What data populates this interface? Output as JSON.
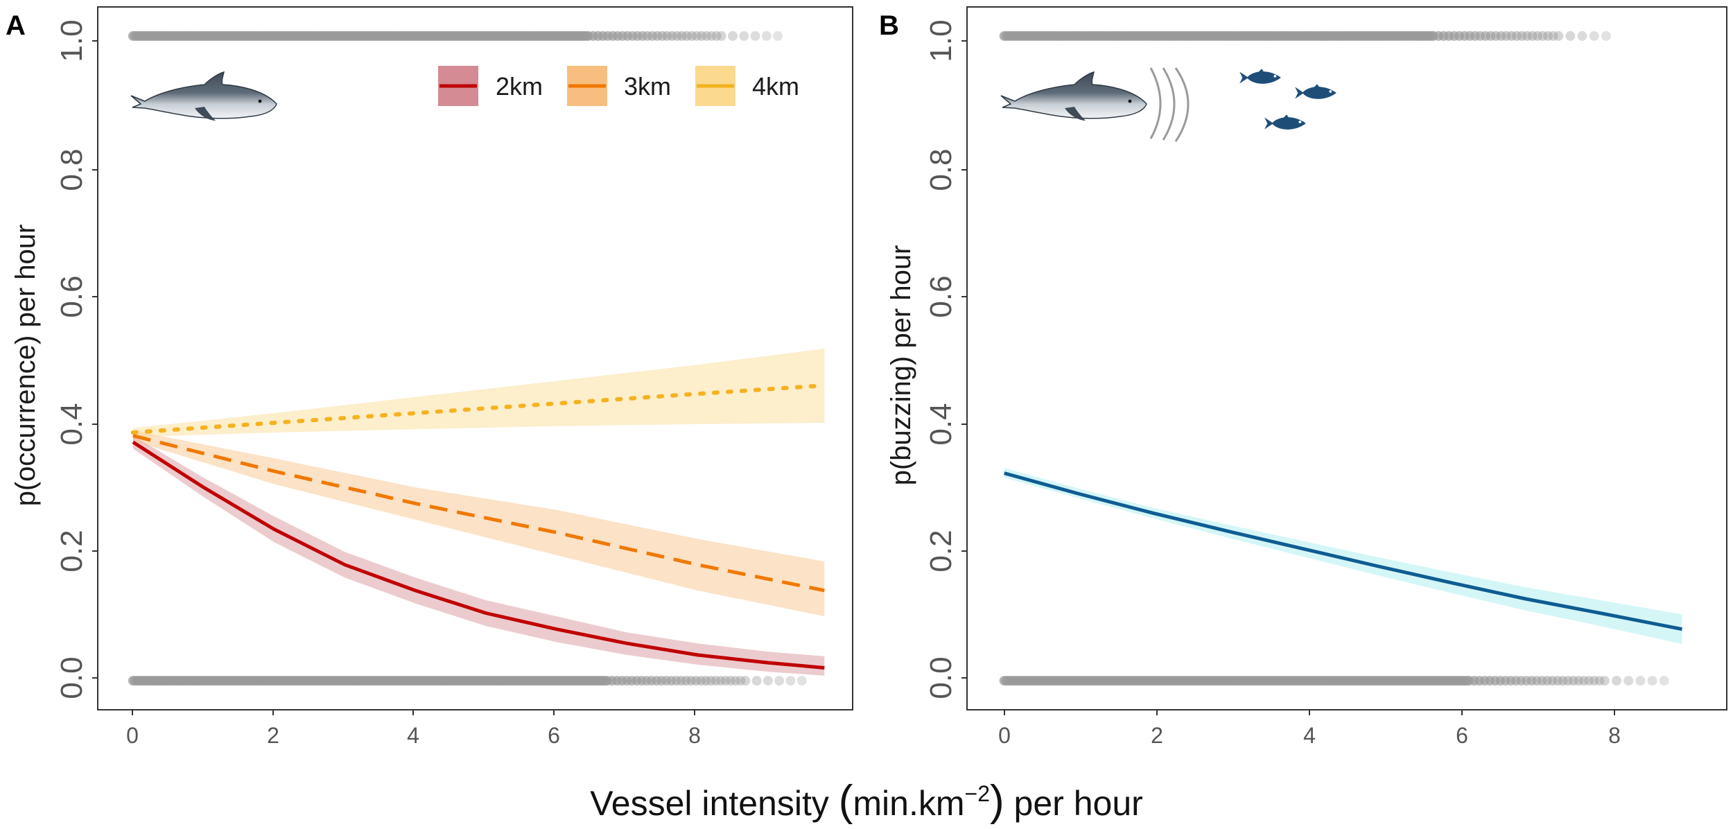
{
  "figure": {
    "xlabel": {
      "pre": "Vessel intensity ",
      "unit": "min.km",
      "sup": "−2",
      "post": " per hour"
    }
  },
  "chart_data": [
    {
      "panel_label": "A",
      "type": "line",
      "ylabel": "p(occurrence) per hour",
      "xlim": [
        -0.5,
        10.2
      ],
      "ylim": [
        -0.045,
        1.045
      ],
      "x_ticks": [
        0,
        2,
        4,
        6,
        8
      ],
      "y_ticks": [
        "0.0",
        "0.2",
        "0.4",
        "0.6",
        "0.8",
        "1.0"
      ],
      "legend_position": "top-right",
      "rug": {
        "y_top": 1.0,
        "y_bottom": 0.0,
        "x_max_top": 9.2,
        "x_max_bottom": 9.6
      },
      "series": [
        {
          "name": "2km",
          "color": "#C00000",
          "fill": "#D48B93",
          "dash": "solid",
          "x": [
            0,
            1,
            2,
            3,
            4,
            5,
            6,
            7,
            8,
            9,
            9.8
          ],
          "y": [
            0.37,
            0.3,
            0.235,
            0.18,
            0.14,
            0.105,
            0.08,
            0.058,
            0.04,
            0.028,
            0.02
          ],
          "lower": [
            0.36,
            0.285,
            0.215,
            0.16,
            0.12,
            0.085,
            0.06,
            0.04,
            0.025,
            0.014,
            0.008
          ],
          "upper": [
            0.38,
            0.315,
            0.255,
            0.2,
            0.16,
            0.125,
            0.1,
            0.075,
            0.058,
            0.045,
            0.038
          ]
        },
        {
          "name": "3km",
          "color": "#F07800",
          "fill": "#F8BE80",
          "dash": "dashed",
          "x": [
            0,
            2,
            4,
            6,
            8,
            9.8
          ],
          "y": [
            0.38,
            0.325,
            0.275,
            0.23,
            0.18,
            0.14
          ],
          "lower": [
            0.372,
            0.305,
            0.25,
            0.195,
            0.14,
            0.1
          ],
          "upper": [
            0.388,
            0.345,
            0.3,
            0.265,
            0.22,
            0.185
          ]
        },
        {
          "name": "4km",
          "color": "#F3B21E",
          "fill": "#FBD98F",
          "dash": "dotted",
          "x": [
            0,
            2,
            4,
            6,
            8,
            9.8
          ],
          "y": [
            0.385,
            0.4,
            0.415,
            0.43,
            0.445,
            0.458
          ],
          "lower": [
            0.378,
            0.385,
            0.39,
            0.395,
            0.398,
            0.4
          ],
          "upper": [
            0.392,
            0.415,
            0.44,
            0.465,
            0.49,
            0.515
          ]
        }
      ]
    },
    {
      "panel_label": "B",
      "type": "line",
      "ylabel": "p(buzzing) per hour",
      "xlim": [
        -0.5,
        9.7
      ],
      "ylim": [
        -0.045,
        1.045
      ],
      "x_ticks": [
        0,
        2,
        4,
        6,
        8
      ],
      "y_ticks": [
        "0.0",
        "0.2",
        "0.4",
        "0.6",
        "0.8",
        "1.0"
      ],
      "rug": {
        "y_top": 1.0,
        "y_bottom": 0.0,
        "x_max_top": 8.2,
        "x_max_bottom": 8.9
      },
      "series": [
        {
          "name": "buzzing",
          "color": "#0F5C91",
          "fill": "#9FEBEE",
          "dash": "solid",
          "x": [
            0,
            1,
            2,
            3,
            4,
            5,
            6,
            7,
            8,
            9.1
          ],
          "y": [
            0.322,
            0.29,
            0.26,
            0.232,
            0.205,
            0.178,
            0.152,
            0.127,
            0.105,
            0.08
          ],
          "lower": [
            0.315,
            0.283,
            0.252,
            0.222,
            0.193,
            0.164,
            0.136,
            0.109,
            0.085,
            0.057
          ],
          "upper": [
            0.33,
            0.298,
            0.268,
            0.242,
            0.217,
            0.192,
            0.168,
            0.145,
            0.125,
            0.103
          ]
        }
      ]
    }
  ],
  "icons": {
    "porpoise": "harbour-porpoise-icon",
    "sound": "echolocation-waves-icon",
    "fish": "fish-icon",
    "porpoise_color": "#4D5A66",
    "fish_color": "#1E4E78"
  }
}
